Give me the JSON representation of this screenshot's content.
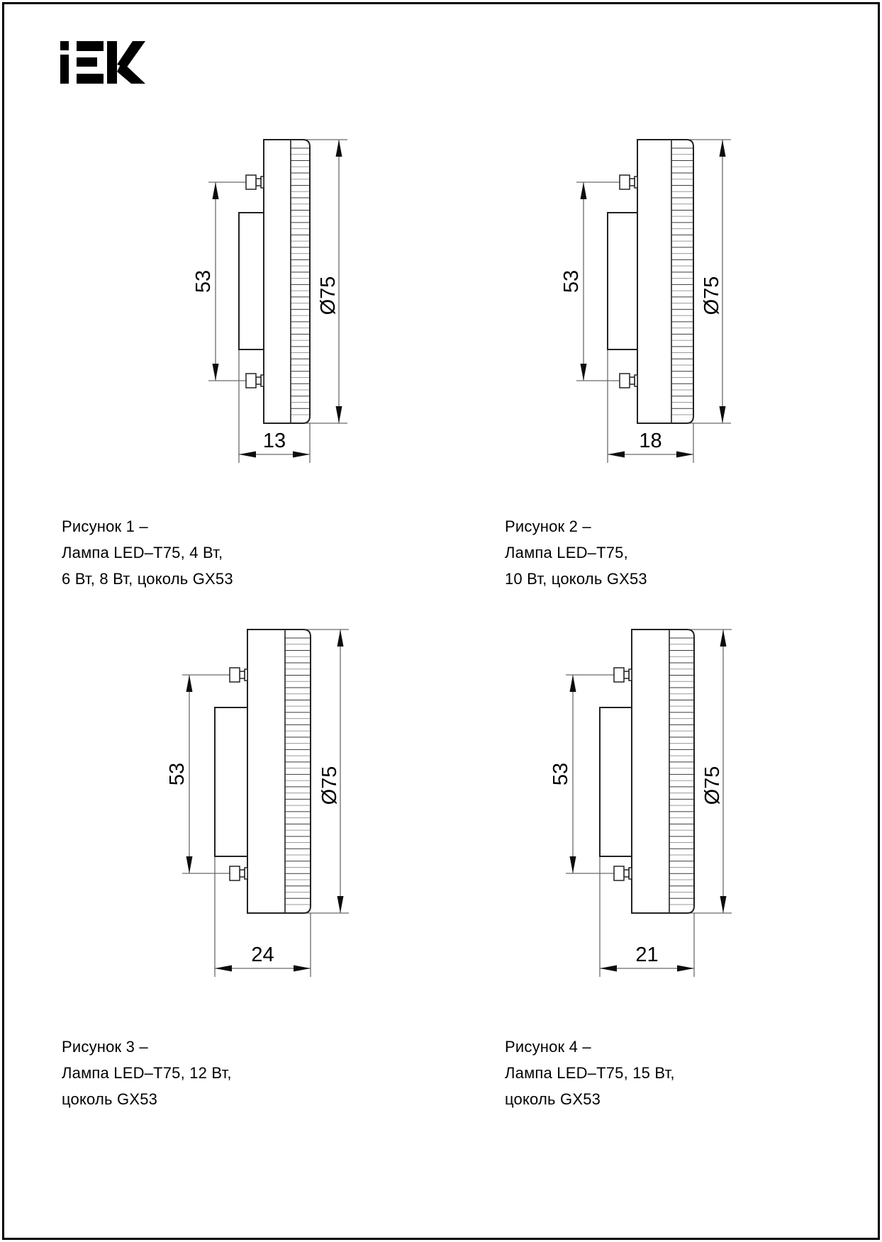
{
  "page": {
    "background": "#ffffff",
    "border_color": "#000000"
  },
  "logo": {
    "name": "IEK",
    "color": "#000000"
  },
  "drawing_colors": {
    "outline": "#222222",
    "dimension_lines": "#6b6b6b",
    "text": "#000000"
  },
  "figures": [
    {
      "caption_lines": [
        "Рисунок 1 –",
        "Лампа LED–T75, 4 Вт,",
        "6 Вт, 8 Вт, цоколь GX53"
      ],
      "pin_spacing": "53",
      "diameter": "Ø75",
      "thickness": "13"
    },
    {
      "caption_lines": [
        "Рисунок 2 –",
        "Лампа LED–T75,",
        "10 Вт, цоколь GX53"
      ],
      "pin_spacing": "53",
      "diameter": "Ø75",
      "thickness": "18"
    },
    {
      "caption_lines": [
        "Рисунок 3 –",
        "Лампа LED–T75, 12 Вт,",
        "цоколь GX53"
      ],
      "pin_spacing": "53",
      "diameter": "Ø75",
      "thickness": "24"
    },
    {
      "caption_lines": [
        "Рисунок 4 –",
        "Лампа LED–T75, 15 Вт,",
        "цоколь GX53"
      ],
      "pin_spacing": "53",
      "diameter": "Ø75",
      "thickness": "21"
    }
  ]
}
